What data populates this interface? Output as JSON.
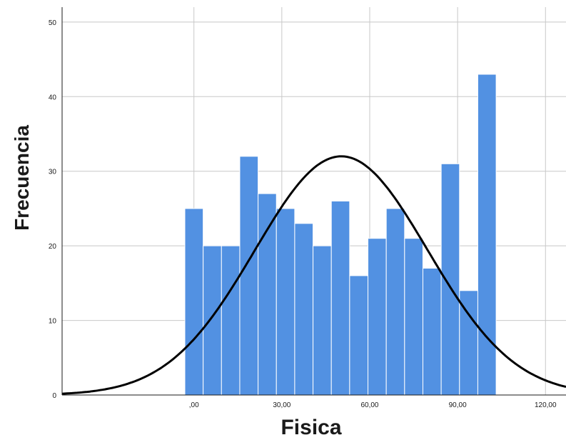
{
  "chart_data": {
    "type": "bar",
    "xlabel": "Fisica",
    "ylabel": "Frecuencia",
    "xlim": [
      -45,
      127
    ],
    "ylim": [
      0,
      52
    ],
    "grid": true,
    "x_ticks": [
      {
        "value": 0,
        "label": ",00"
      },
      {
        "value": 30,
        "label": "30,00"
      },
      {
        "value": 60,
        "label": "60,00"
      },
      {
        "value": 90,
        "label": "90,00"
      },
      {
        "value": 120,
        "label": "120,00"
      }
    ],
    "y_ticks": [
      {
        "value": 0,
        "label": "0"
      },
      {
        "value": 10,
        "label": "10"
      },
      {
        "value": 20,
        "label": "20"
      },
      {
        "value": 30,
        "label": "30"
      },
      {
        "value": 40,
        "label": "40"
      },
      {
        "value": 50,
        "label": "50"
      }
    ],
    "bin_width": 6.25,
    "bins": [
      {
        "start": -3.1,
        "value": 25
      },
      {
        "start": 3.15,
        "value": 20
      },
      {
        "start": 9.4,
        "value": 20
      },
      {
        "start": 15.65,
        "value": 32
      },
      {
        "start": 21.9,
        "value": 27
      },
      {
        "start": 28.15,
        "value": 25
      },
      {
        "start": 34.4,
        "value": 23
      },
      {
        "start": 40.65,
        "value": 20
      },
      {
        "start": 46.9,
        "value": 26
      },
      {
        "start": 53.15,
        "value": 16
      },
      {
        "start": 59.4,
        "value": 21
      },
      {
        "start": 65.65,
        "value": 25
      },
      {
        "start": 71.9,
        "value": 21
      },
      {
        "start": 78.15,
        "value": 17
      },
      {
        "start": 84.4,
        "value": 31
      },
      {
        "start": 90.65,
        "value": 14
      },
      {
        "start": 96.9,
        "value": 43
      }
    ],
    "normal_curve": {
      "mean": 50.3,
      "sd": 29.5,
      "peak": 32
    },
    "colors": {
      "bar": "#5291e2",
      "curve": "#000000",
      "grid": "#c8c8c8"
    }
  }
}
